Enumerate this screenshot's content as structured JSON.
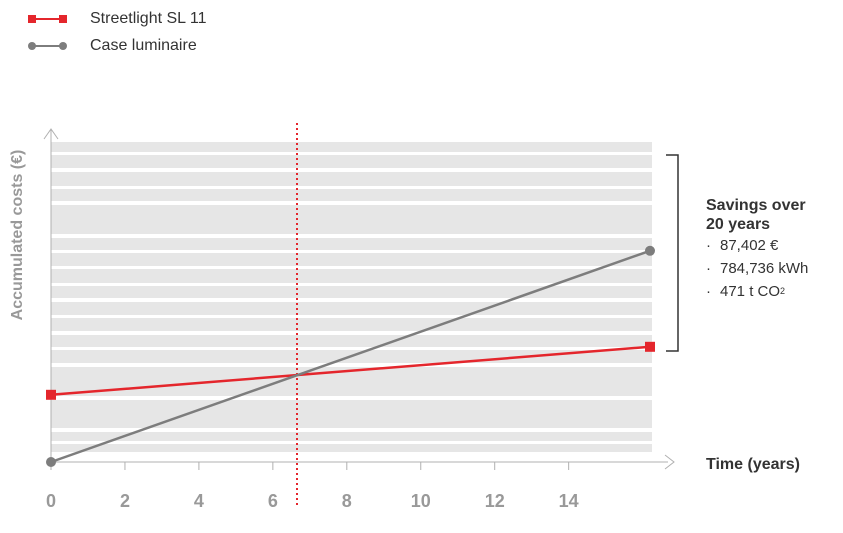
{
  "chart_data": {
    "type": "line",
    "title": "",
    "xlabel": "Time (years)",
    "ylabel": "Accumulated costs (€)",
    "x_ticks": [
      0,
      2,
      4,
      6,
      8,
      10,
      12,
      14
    ],
    "xlim": [
      0,
      16.2
    ],
    "ylim": [
      0,
      1
    ],
    "grid": true,
    "legend_position": "top-left",
    "break_even_year": 6.7,
    "series": [
      {
        "name": "Streetlight SL 11",
        "color": "#e4262c",
        "marker": "square",
        "x": [
          0,
          16.2
        ],
        "y": [
          0.21,
          0.36
        ]
      },
      {
        "name": "Case luminaire",
        "color": "#7d7d7d",
        "marker": "circle",
        "x": [
          0,
          16.2
        ],
        "y": [
          0.0,
          0.66
        ]
      }
    ],
    "annotation": {
      "title": "Savings over 20 years",
      "items": [
        "87,402 €",
        "784,736 kWh",
        "471 t CO"
      ],
      "co2_subscript": "2"
    }
  }
}
